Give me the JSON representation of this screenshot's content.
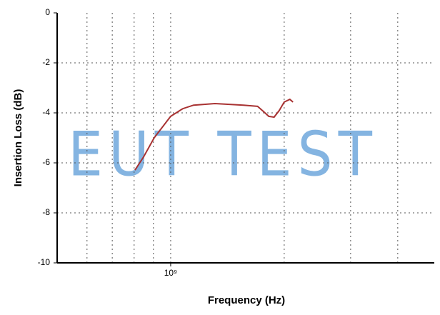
{
  "chart_data": {
    "type": "line",
    "xlabel": "Frequency (Hz)",
    "ylabel": "Insertion Loss (dB)",
    "watermark": "EUT TEST",
    "xscale": "log",
    "xlim": [
      500000000,
      5000000000
    ],
    "xticks": [
      {
        "value": 1000000000,
        "label": "10⁹"
      }
    ],
    "xminor": [
      600000000,
      700000000,
      800000000,
      900000000,
      2000000000,
      3000000000,
      4000000000
    ],
    "ylim": [
      -10,
      0
    ],
    "yticks": [
      -10,
      -8,
      -6,
      -4,
      -2,
      0
    ],
    "grid": true,
    "series": [
      {
        "color": "#a83232",
        "x": [
          804000000,
          847000000,
          904000000,
          1000000000,
          1077000000,
          1150000000,
          1310000000,
          1430000000,
          1560000000,
          1700000000,
          1760000000,
          1820000000,
          1880000000,
          1940000000,
          2000000000,
          2070000000,
          2110000000
        ],
        "values": [
          -6.29,
          -5.77,
          -5.0,
          -4.14,
          -3.83,
          -3.69,
          -3.63,
          -3.66,
          -3.69,
          -3.74,
          -3.94,
          -4.14,
          -4.17,
          -3.91,
          -3.57,
          -3.46,
          -3.57
        ]
      }
    ]
  }
}
